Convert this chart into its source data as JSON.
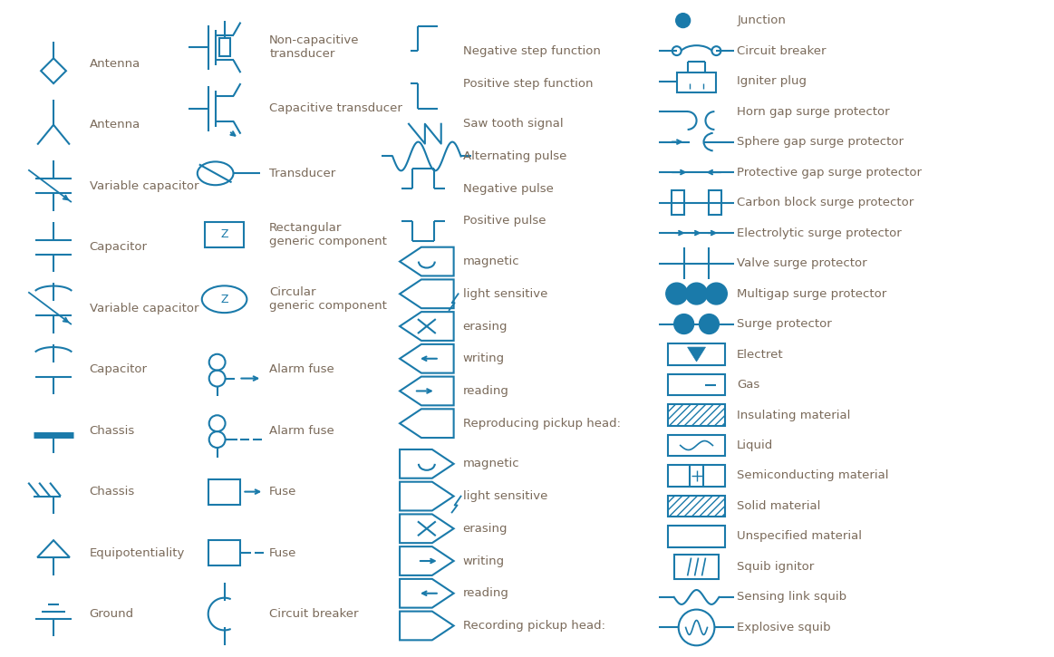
{
  "bg_color": "#ffffff",
  "symbol_color": "#1a7aaa",
  "text_color": "#7a6a5a",
  "figsize": [
    11.63,
    7.25
  ],
  "dpi": 100,
  "col1_items": [
    "Ground",
    "Equipotentiality",
    "Chassis",
    "Chassis",
    "Capacitor",
    "Variable capacitor",
    "Capacitor",
    "Variable capacitor",
    "Antenna",
    "Antenna"
  ],
  "col2_items": [
    "Circuit breaker",
    "Fuse",
    "Fuse",
    "Alarm fuse",
    "Alarm fuse",
    "Circular\ngeneric component",
    "Rectangular\ngeneric component",
    "Transducer",
    "Capacitive transducer",
    "Non-capacitive\ntransducer"
  ],
  "col3_items": [
    "Recording pickup head:",
    "reading",
    "writing",
    "erasing",
    "light sensitive",
    "magnetic",
    "Reproducing pickup head:",
    "reading",
    "writing",
    "erasing",
    "light sensitive",
    "magnetic",
    "Positive pulse",
    "Negative pulse",
    "Alternating pulse",
    "Saw tooth signal",
    "Positive step function",
    "Negative step function"
  ],
  "col4_items": [
    "Explosive squib",
    "Sensing link squib",
    "Squib ignitor",
    "Unspecified material",
    "Solid material",
    "Semiconducting material",
    "Liquid",
    "Insulating material",
    "Gas",
    "Electret",
    "Surge protector",
    "Multigap surge protector",
    "Valve surge protector",
    "Electrolytic surge protector",
    "Carbon block surge protector",
    "Protective gap surge protector",
    "Sphere gap surge protector",
    "Horn gap surge protector",
    "Igniter plug",
    "Circuit breaker",
    "Junction"
  ]
}
